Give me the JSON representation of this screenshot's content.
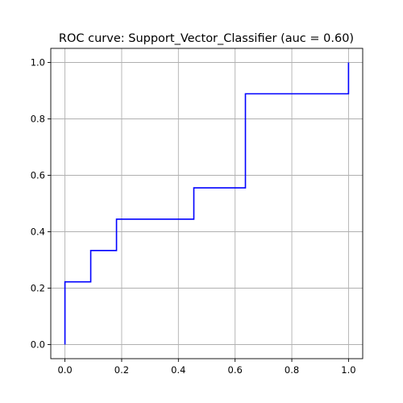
{
  "chart_data": {
    "type": "line",
    "title": "ROC curve: Support_Vector_Classifier (auc = 0.60)",
    "xlabel": "",
    "ylabel": "",
    "xlim": [
      -0.05,
      1.05
    ],
    "ylim": [
      -0.05,
      1.05
    ],
    "grid": true,
    "x_ticks": [
      0.0,
      0.2,
      0.4,
      0.6,
      0.8,
      1.0
    ],
    "y_ticks": [
      0.0,
      0.2,
      0.4,
      0.6,
      0.8,
      1.0
    ],
    "x_tick_labels": [
      "0.0",
      "0.2",
      "0.4",
      "0.6",
      "0.8",
      "1.0"
    ],
    "y_tick_labels": [
      "0.0",
      "0.2",
      "0.4",
      "0.6",
      "0.8",
      "1.0"
    ],
    "series": [
      {
        "color": "#0000ff",
        "x": [
          0.0,
          0.0,
          0.0909,
          0.0909,
          0.1818,
          0.1818,
          0.4545,
          0.4545,
          0.6364,
          0.6364,
          1.0,
          1.0
        ],
        "y": [
          0.0,
          0.2222,
          0.2222,
          0.3333,
          0.3333,
          0.4444,
          0.4444,
          0.5556,
          0.5556,
          0.8889,
          0.8889,
          1.0
        ]
      }
    ]
  }
}
